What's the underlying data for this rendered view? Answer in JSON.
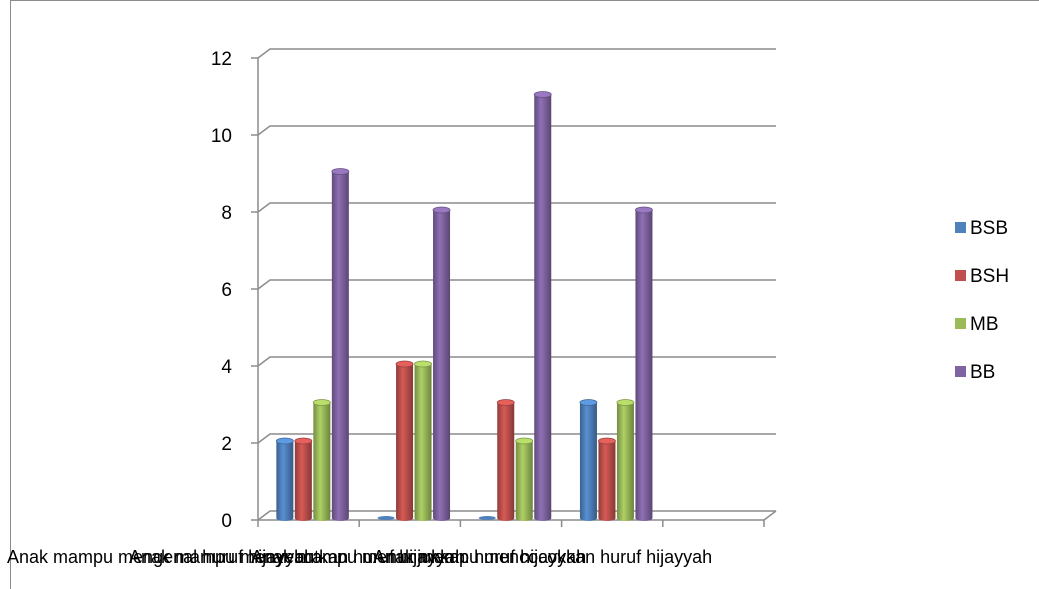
{
  "chart_data": {
    "type": "bar",
    "style": "3d-cylinder",
    "categories": [
      "Anak mampu mengenal huruf hijayyah",
      "Anak mampu menyebutkan huruf hijayyah",
      "Anak mampu menunjukkan huruf hijayyah",
      "Anak mampu mencocokkan huruf hijayyah"
    ],
    "series": [
      {
        "name": "BSB",
        "color": "#4f81bd",
        "values": [
          2,
          0,
          0,
          3
        ]
      },
      {
        "name": "BSH",
        "color": "#c0504d",
        "values": [
          2,
          4,
          3,
          2
        ]
      },
      {
        "name": "MB",
        "color": "#9bbb59",
        "values": [
          3,
          4,
          2,
          3
        ]
      },
      {
        "name": "BB",
        "color": "#8064a2",
        "values": [
          9,
          8,
          11,
          8
        ]
      }
    ],
    "ylim": [
      0,
      12
    ],
    "yticks": [
      0,
      2,
      4,
      6,
      8,
      10,
      12
    ],
    "grid": true,
    "legend": "right",
    "title": "",
    "xlabel": "",
    "ylabel": ""
  }
}
